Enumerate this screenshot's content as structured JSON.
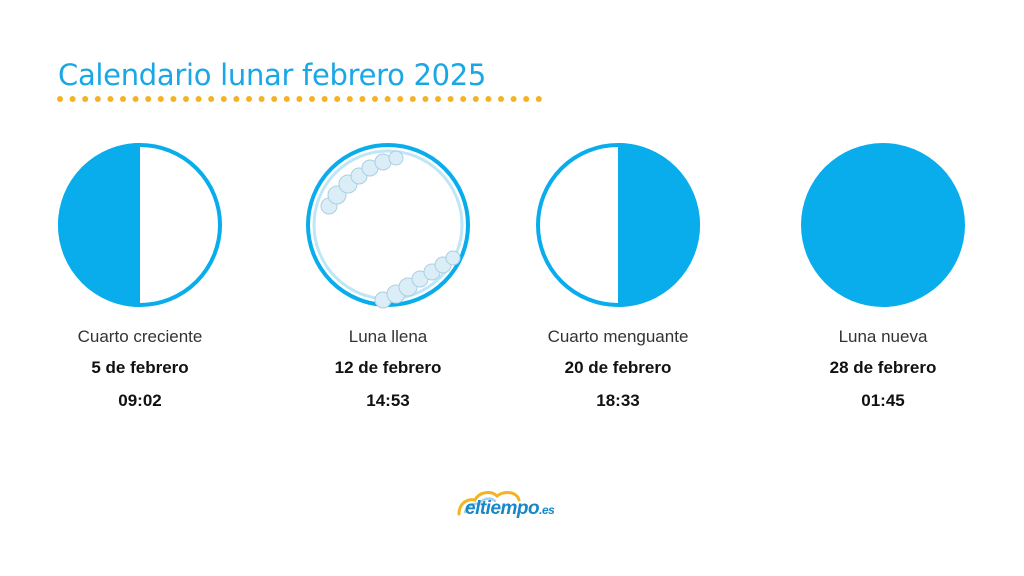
{
  "title": "Calendario lunar febrero 2025",
  "colors": {
    "accent": "#1aa7e6",
    "moon": "#09adec",
    "dots": "#f5b324",
    "logo": "#1787c7"
  },
  "phases": [
    {
      "name": "Cuarto creciente",
      "date": "5 de febrero",
      "time": "09:02",
      "icon": "first-quarter-moon-icon"
    },
    {
      "name": "Luna llena",
      "date": "12 de febrero",
      "time": "14:53",
      "icon": "full-moon-icon"
    },
    {
      "name": "Cuarto menguante",
      "date": "20 de febrero",
      "time": "18:33",
      "icon": "last-quarter-moon-icon"
    },
    {
      "name": "Luna nueva",
      "date": "28 de febrero",
      "time": "01:45",
      "icon": "new-moon-icon"
    }
  ],
  "logo": {
    "name": "eltiempo",
    "suffix": ".es"
  }
}
